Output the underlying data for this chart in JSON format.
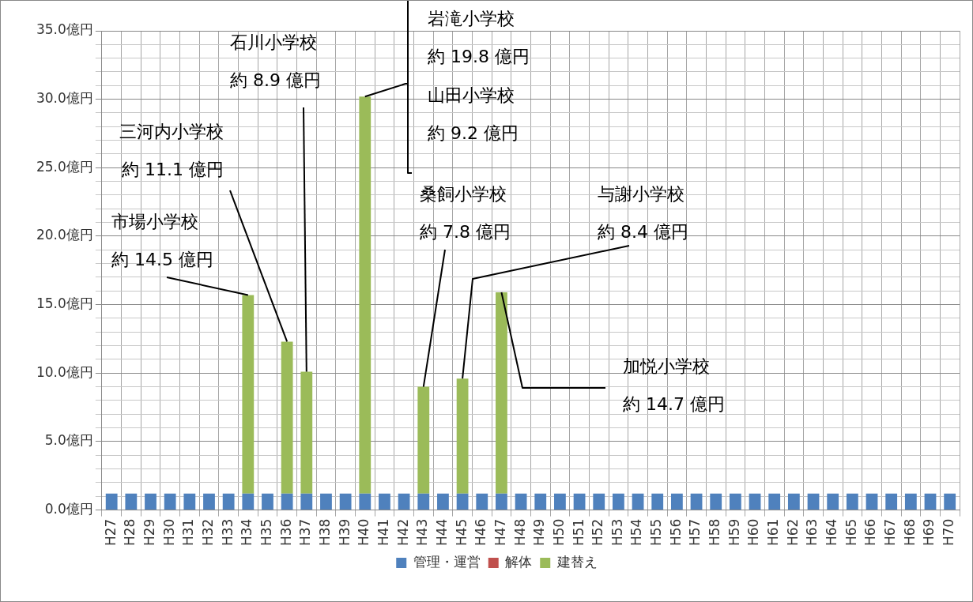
{
  "chart_data": {
    "type": "bar",
    "stacked": true,
    "categories": [
      "H27",
      "H28",
      "H29",
      "H30",
      "H31",
      "H32",
      "H33",
      "H34",
      "H35",
      "H36",
      "H37",
      "H38",
      "H39",
      "H40",
      "H41",
      "H42",
      "H43",
      "H44",
      "H45",
      "H46",
      "H47",
      "H48",
      "H49",
      "H50",
      "H51",
      "H52",
      "H53",
      "H54",
      "H55",
      "H56",
      "H57",
      "H58",
      "H59",
      "H60",
      "H61",
      "H62",
      "H63",
      "H64",
      "H65",
      "H66",
      "H67",
      "H68",
      "H69",
      "H70"
    ],
    "series": [
      {
        "name": "管理・運営",
        "color": "#4f81bd",
        "values": [
          1.2,
          1.2,
          1.2,
          1.2,
          1.2,
          1.2,
          1.2,
          1.2,
          1.2,
          1.2,
          1.2,
          1.2,
          1.2,
          1.2,
          1.2,
          1.2,
          1.2,
          1.2,
          1.2,
          1.2,
          1.2,
          1.2,
          1.2,
          1.2,
          1.2,
          1.2,
          1.2,
          1.2,
          1.2,
          1.2,
          1.2,
          1.2,
          1.2,
          1.2,
          1.2,
          1.2,
          1.2,
          1.2,
          1.2,
          1.2,
          1.2,
          1.2,
          1.2,
          1.2
        ]
      },
      {
        "name": "解体",
        "color": "#c0504d",
        "values": [
          0,
          0,
          0,
          0,
          0,
          0,
          0,
          0,
          0,
          0,
          0,
          0,
          0,
          0,
          0,
          0,
          0,
          0,
          0,
          0,
          0,
          0,
          0,
          0,
          0,
          0,
          0,
          0,
          0,
          0,
          0,
          0,
          0,
          0,
          0,
          0,
          0,
          0,
          0,
          0,
          0,
          0,
          0,
          0
        ]
      },
      {
        "name": "建替え",
        "color": "#9bbb59",
        "values": [
          0,
          0,
          0,
          0,
          0,
          0,
          0,
          14.5,
          0,
          11.1,
          8.9,
          0,
          0,
          29.0,
          0,
          0,
          7.8,
          0,
          8.4,
          0,
          14.7,
          0,
          0,
          0,
          0,
          0,
          0,
          0,
          0,
          0,
          0,
          0,
          0,
          0,
          0,
          0,
          0,
          0,
          0,
          0,
          0,
          0,
          0,
          0
        ]
      }
    ],
    "ylim": [
      0,
      35
    ],
    "yticks": [
      {
        "value": 0,
        "label": "0.0億円"
      },
      {
        "value": 1,
        "label": null
      },
      {
        "value": 2,
        "label": null
      },
      {
        "value": 3,
        "label": null
      },
      {
        "value": 4,
        "label": null
      },
      {
        "value": 5,
        "label": "5.0億円"
      },
      {
        "value": 6,
        "label": null
      },
      {
        "value": 7,
        "label": null
      },
      {
        "value": 8,
        "label": null
      },
      {
        "value": 9,
        "label": null
      },
      {
        "value": 10,
        "label": "10.0億円"
      },
      {
        "value": 11,
        "label": null
      },
      {
        "value": 12,
        "label": null
      },
      {
        "value": 13,
        "label": null
      },
      {
        "value": 14,
        "label": null
      },
      {
        "value": 15,
        "label": "15.0億円"
      },
      {
        "value": 16,
        "label": null
      },
      {
        "value": 17,
        "label": null
      },
      {
        "value": 18,
        "label": null
      },
      {
        "value": 19,
        "label": null
      },
      {
        "value": 20,
        "label": "20.0億円"
      },
      {
        "value": 21,
        "label": null
      },
      {
        "value": 22,
        "label": null
      },
      {
        "value": 23,
        "label": null
      },
      {
        "value": 24,
        "label": null
      },
      {
        "value": 25,
        "label": "25.0億円"
      },
      {
        "value": 26,
        "label": null
      },
      {
        "value": 27,
        "label": null
      },
      {
        "value": 28,
        "label": null
      },
      {
        "value": 29,
        "label": null
      },
      {
        "value": 30,
        "label": "30.0億円"
      },
      {
        "value": 31,
        "label": null
      },
      {
        "value": 32,
        "label": null
      },
      {
        "value": 33,
        "label": null
      },
      {
        "value": 34,
        "label": null
      },
      {
        "value": 35,
        "label": "35.0億円"
      }
    ],
    "grid": true,
    "legend": "bottom",
    "annotations": [
      "市場小学校",
      {
        "text": "約 14.5 億円",
        "x": "H34",
        "y": 15.7
      },
      "三河内小学校",
      {
        "text": "約 11.1 億円",
        "x": "H36",
        "y": 12.3
      },
      "石川小学校",
      {
        "text": "約 8.9 億円",
        "x": "H37",
        "y": 10.1
      },
      {
        "text": "岩滝小学校",
        "x": "H40",
        "y": 30.2
      },
      "約 19.8 億円",
      "山田小学校",
      "約 9.2 億円",
      "桑飼小学校",
      {
        "text": "約 7.8 億円",
        "x": "H43",
        "y": 9.0
      },
      "与謝小学校",
      {
        "text": "約 8.4 億円",
        "x": "H45",
        "y": 9.6
      },
      "加悦小学校",
      {
        "text": "約 14.7 億円",
        "x": "H47",
        "y": 15.9
      }
    ]
  }
}
